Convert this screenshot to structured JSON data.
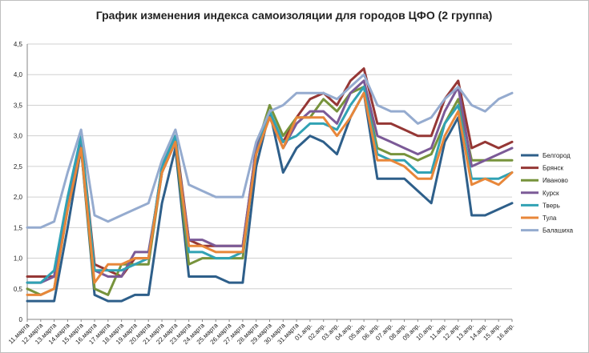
{
  "chart_data": {
    "type": "line",
    "title": "График изменения индекса самоизоляции для городов ЦФО (2 группа)",
    "xlabel": "",
    "ylabel": "",
    "ylim": [
      0,
      4.5
    ],
    "yticks": [
      "0",
      "0,5",
      "1,0",
      "1,5",
      "2,0",
      "2,5",
      "3,0",
      "3,5",
      "4,0",
      "4,5"
    ],
    "grid": true,
    "legend": "right",
    "x": [
      "11.марта",
      "12.марта",
      "13.марта",
      "14.марта",
      "15.марта",
      "16.марта",
      "17.марта",
      "18.марта",
      "19.марта",
      "20.марта",
      "21.марта",
      "22.марта",
      "23.марта",
      "24.марта",
      "25.марта",
      "26.марта",
      "27.марта",
      "28.марта",
      "29.марта",
      "30.марта",
      "31.марта",
      "01.апр.",
      "02.апр.",
      "03.апр.",
      "04.апр.",
      "05.апр.",
      "06.апр.",
      "07.апр.",
      "08.апр.",
      "09.апр.",
      "10.апр.",
      "11.апр.",
      "12.апр.",
      "13.апр.",
      "14.апр.",
      "15.апр.",
      "16.апр."
    ],
    "x_tick_labels": [
      "11.марта",
      "12.марта",
      "13.марта",
      "14.марта",
      "15.марта",
      "16.марта",
      "17.марта",
      "18.марта",
      "19.марта",
      "20.марта",
      "21.марта",
      "22.марта",
      "23.марта",
      "24.марта",
      "25.марта",
      "26.марта",
      "27.марта",
      "28.марта",
      "29.марта",
      "30.марта",
      "31.марта",
      "01.апр.",
      "02.апр.",
      "03.апр.",
      "04.апр.",
      "05.апр.",
      "06.апр.",
      "07.апр.",
      "08.апр.",
      "09.апр.",
      "10.апр.",
      "11.апр.",
      "12.апр.",
      "13.апр.",
      "14.апр.",
      "15.апр.",
      "16.апр."
    ],
    "series": [
      {
        "name": "Белгород",
        "color": "#2e5f8a",
        "values": [
          0.3,
          0.3,
          0.3,
          1.5,
          2.8,
          0.4,
          0.3,
          0.3,
          0.4,
          0.4,
          1.9,
          2.8,
          0.7,
          0.7,
          0.7,
          0.6,
          0.6,
          2.5,
          3.4,
          2.4,
          2.8,
          3.0,
          2.9,
          2.7,
          3.3,
          3.7,
          2.3,
          2.3,
          2.3,
          2.1,
          1.9,
          2.9,
          3.3,
          1.7,
          1.7,
          1.8,
          1.9
        ]
      },
      {
        "name": "Брянск",
        "color": "#953735",
        "values": [
          0.7,
          0.7,
          0.7,
          1.9,
          3.0,
          0.9,
          0.8,
          0.7,
          1.0,
          1.0,
          2.5,
          3.0,
          1.3,
          1.2,
          1.2,
          1.2,
          1.2,
          2.8,
          3.3,
          2.9,
          3.3,
          3.6,
          3.7,
          3.5,
          3.9,
          4.1,
          3.2,
          3.2,
          3.1,
          3.0,
          3.0,
          3.6,
          3.9,
          2.8,
          2.9,
          2.8,
          2.9
        ]
      },
      {
        "name": "Иваново",
        "color": "#77933c",
        "values": [
          0.5,
          0.4,
          0.5,
          1.8,
          2.8,
          0.5,
          0.4,
          0.9,
          0.9,
          0.9,
          2.4,
          2.9,
          0.9,
          1.0,
          1.0,
          1.0,
          1.0,
          2.8,
          3.5,
          3.0,
          3.3,
          3.3,
          3.6,
          3.4,
          3.7,
          3.8,
          2.8,
          2.7,
          2.7,
          2.6,
          2.7,
          3.2,
          3.6,
          2.6,
          2.6,
          2.6,
          2.6
        ]
      },
      {
        "name": "Курск",
        "color": "#7b5a97",
        "values": [
          0.6,
          0.6,
          0.7,
          1.9,
          2.9,
          0.8,
          0.7,
          0.7,
          1.1,
          1.1,
          2.4,
          2.9,
          1.3,
          1.3,
          1.2,
          1.2,
          1.2,
          2.8,
          3.3,
          2.8,
          3.2,
          3.4,
          3.4,
          3.2,
          3.7,
          3.9,
          3.0,
          2.9,
          2.8,
          2.7,
          2.8,
          3.4,
          3.8,
          2.5,
          2.6,
          2.7,
          2.8
        ]
      },
      {
        "name": "Тверь",
        "color": "#31a2b4",
        "values": [
          0.6,
          0.6,
          0.8,
          2.0,
          3.0,
          0.8,
          0.8,
          0.8,
          0.9,
          1.0,
          2.5,
          3.0,
          1.1,
          1.1,
          1.0,
          1.0,
          1.1,
          2.7,
          3.4,
          2.9,
          3.0,
          3.2,
          3.2,
          3.1,
          3.5,
          3.8,
          2.7,
          2.6,
          2.6,
          2.4,
          2.4,
          3.2,
          3.5,
          2.3,
          2.3,
          2.3,
          2.4
        ]
      },
      {
        "name": "Тула",
        "color": "#e8873a",
        "values": [
          0.4,
          0.4,
          0.5,
          1.8,
          2.8,
          0.6,
          0.9,
          0.9,
          1.0,
          1.0,
          2.4,
          2.9,
          1.2,
          1.2,
          1.1,
          1.1,
          1.1,
          2.7,
          3.3,
          2.8,
          3.3,
          3.3,
          3.3,
          3.0,
          3.3,
          3.7,
          2.6,
          2.6,
          2.5,
          2.3,
          2.3,
          3.0,
          3.4,
          2.2,
          2.3,
          2.2,
          2.4
        ]
      },
      {
        "name": "Балашиха",
        "color": "#95abcf",
        "values": [
          1.5,
          1.5,
          1.6,
          2.4,
          3.1,
          1.7,
          1.6,
          1.7,
          1.8,
          1.9,
          2.6,
          3.1,
          2.2,
          2.1,
          2.0,
          2.0,
          2.0,
          2.9,
          3.4,
          3.5,
          3.7,
          3.7,
          3.7,
          3.6,
          3.8,
          4.0,
          3.5,
          3.4,
          3.4,
          3.2,
          3.3,
          3.6,
          3.8,
          3.5,
          3.4,
          3.6,
          3.7
        ]
      }
    ]
  }
}
